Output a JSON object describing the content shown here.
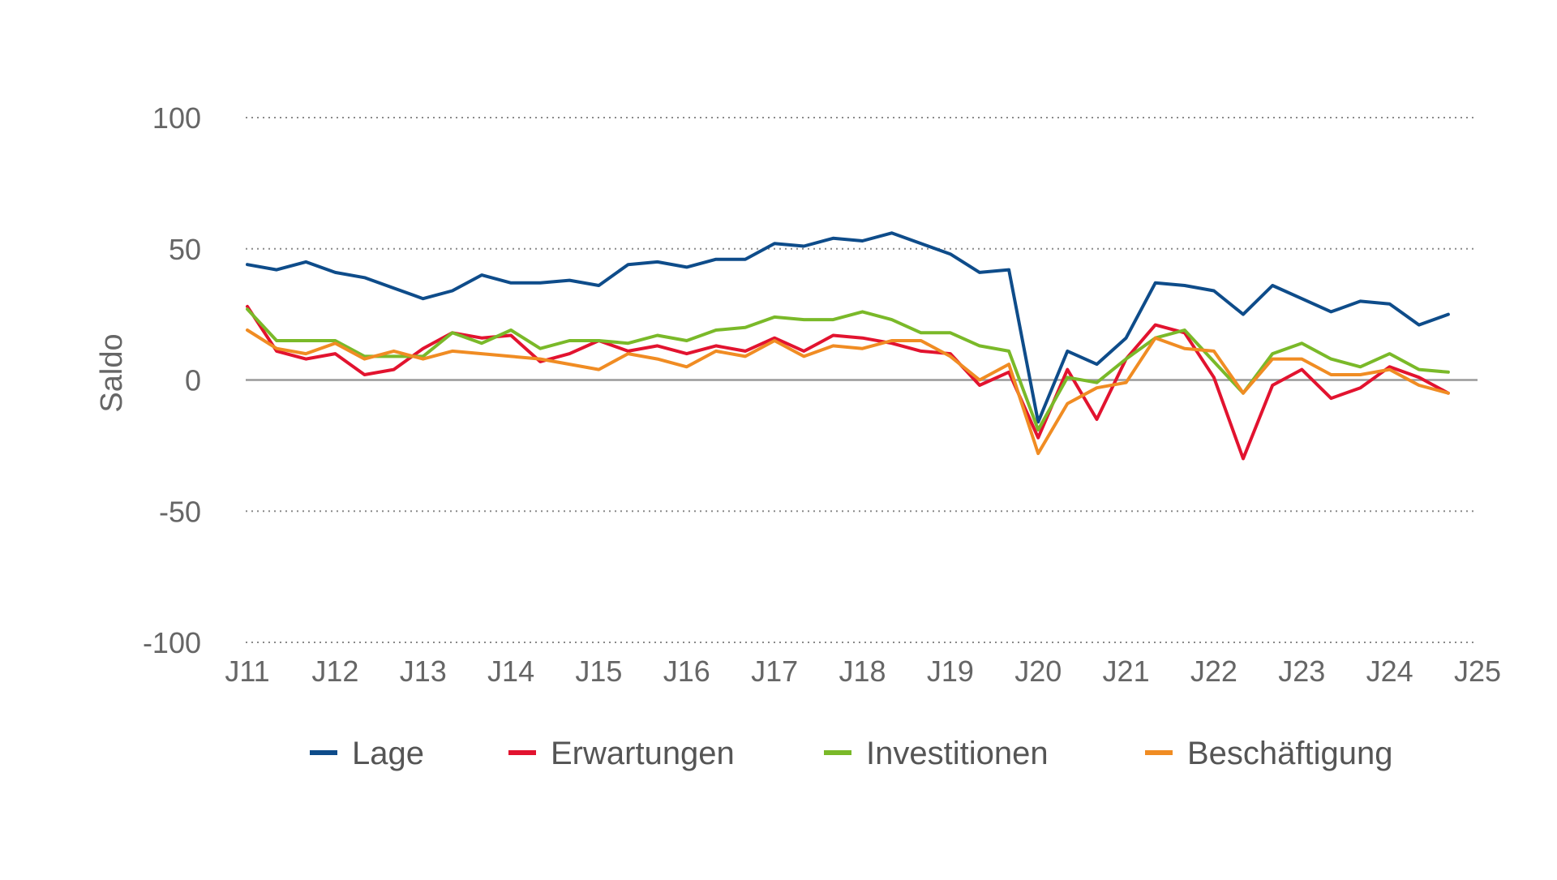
{
  "chart_data": {
    "type": "line",
    "title": "",
    "ylabel": "Saldo",
    "xlabel": "",
    "ylim": [
      -100,
      100
    ],
    "yticks": [
      100,
      50,
      0,
      -50,
      -100
    ],
    "ytick_labels": [
      "100",
      "50",
      "0",
      "-50",
      "-100"
    ],
    "x_tick_labels": [
      "J11",
      "J12",
      "J13",
      "J14",
      "J15",
      "J16",
      "J17",
      "J18",
      "J19",
      "J20",
      "J21",
      "J22",
      "J23",
      "J24",
      "J25"
    ],
    "x_index_range": [
      0,
      42
    ],
    "points_per_year": 3,
    "grid": true,
    "legend_position": "bottom",
    "series": [
      {
        "name": "Lage",
        "color": "#0E4C8A",
        "values": [
          44,
          42,
          45,
          41,
          39,
          35,
          31,
          34,
          40,
          37,
          37,
          38,
          36,
          44,
          45,
          43,
          46,
          46,
          52,
          51,
          54,
          53,
          56,
          52,
          48,
          41,
          42,
          -16,
          11,
          6,
          16,
          37,
          36,
          34,
          25,
          36,
          31,
          26,
          30,
          29,
          21,
          25
        ]
      },
      {
        "name": "Erwartungen",
        "color": "#E2132F",
        "values": [
          28,
          11,
          8,
          10,
          2,
          4,
          12,
          18,
          16,
          17,
          7,
          10,
          15,
          11,
          13,
          10,
          13,
          11,
          16,
          11,
          17,
          16,
          14,
          11,
          10,
          -2,
          3,
          -22,
          4,
          -15,
          8,
          21,
          18,
          1,
          -30,
          -2,
          4,
          -7,
          -3,
          5,
          1,
          -5
        ]
      },
      {
        "name": "Investitionen",
        "color": "#7AB929",
        "values": [
          27,
          15,
          15,
          15,
          9,
          9,
          9,
          18,
          14,
          19,
          12,
          15,
          15,
          14,
          17,
          15,
          19,
          20,
          24,
          23,
          23,
          26,
          23,
          18,
          18,
          13,
          11,
          -19,
          1,
          -1,
          8,
          16,
          19,
          7,
          -5,
          10,
          14,
          8,
          5,
          10,
          4,
          3
        ]
      },
      {
        "name": "Beschäftigung",
        "color": "#F08C23",
        "values": [
          19,
          12,
          10,
          14,
          8,
          11,
          8,
          11,
          10,
          9,
          8,
          6,
          4,
          10,
          8,
          5,
          11,
          9,
          15,
          9,
          13,
          12,
          15,
          15,
          9,
          0,
          6,
          -28,
          -9,
          -3,
          -1,
          16,
          12,
          11,
          -5,
          8,
          8,
          2,
          2,
          4,
          -2,
          -5
        ]
      }
    ]
  }
}
